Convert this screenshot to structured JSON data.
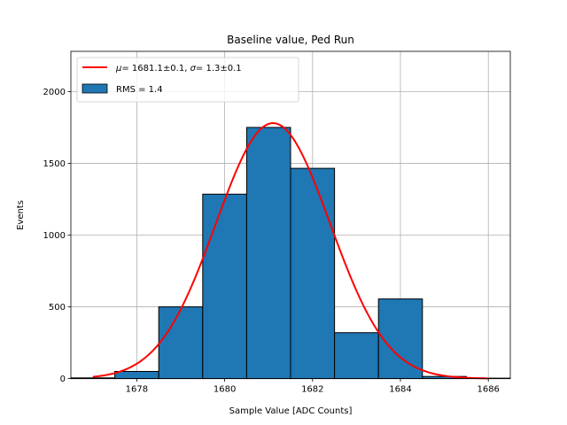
{
  "chart_data": {
    "type": "bar",
    "title": "Baseline value, Ped Run",
    "xlabel": "Sample Value [ADC Counts]",
    "ylabel": "Events",
    "xlim": [
      1676.5,
      1686.5
    ],
    "ylim": [
      0,
      2280
    ],
    "grid": true,
    "x_ticks": [
      1678,
      1680,
      1682,
      1684,
      1686
    ],
    "y_ticks": [
      0,
      500,
      1000,
      1500,
      2000
    ],
    "bins": [
      {
        "left": 1676.5,
        "right": 1677.5,
        "value": 5
      },
      {
        "left": 1677.5,
        "right": 1678.5,
        "value": 50
      },
      {
        "left": 1678.5,
        "right": 1679.5,
        "value": 500
      },
      {
        "left": 1679.5,
        "right": 1680.5,
        "value": 1285
      },
      {
        "left": 1680.5,
        "right": 1681.5,
        "value": 1750
      },
      {
        "left": 1681.5,
        "right": 1682.5,
        "value": 1465
      },
      {
        "left": 1682.5,
        "right": 1683.5,
        "value": 320
      },
      {
        "left": 1683.5,
        "right": 1684.5,
        "value": 555
      },
      {
        "left": 1684.5,
        "right": 1685.5,
        "value": 15
      },
      {
        "left": 1685.5,
        "right": 1686.5,
        "value": 3
      }
    ],
    "bar_color": "#1f77b4",
    "fit": {
      "mu": 1681.1,
      "sigma": 1.3,
      "amplitude": 1780,
      "x_range": [
        1677,
        1686
      ],
      "color": "#ff0000"
    },
    "legend": {
      "placement": "top-left",
      "fit_label_text": "= 1681.1±0.1, ",
      "fit_label_text2": "= 1.3±0.1",
      "hist_label": "RMS = 1.4"
    }
  }
}
